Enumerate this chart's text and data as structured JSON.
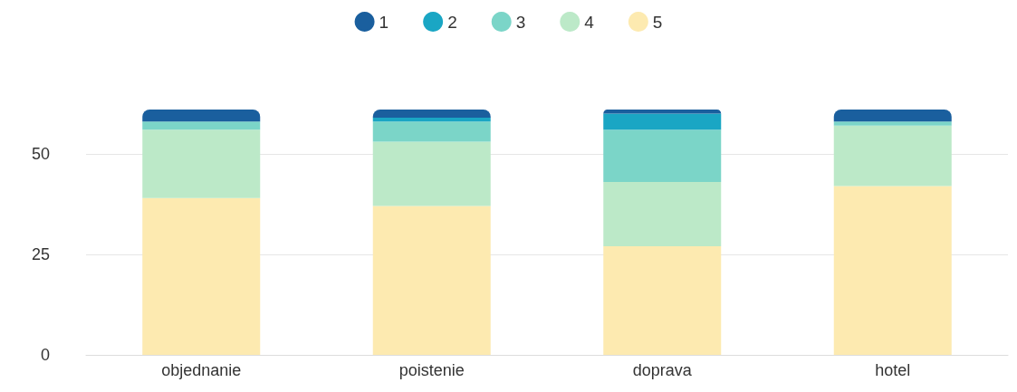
{
  "chart_data": {
    "type": "bar",
    "stacked": true,
    "categories": [
      "objednanie",
      "poistenie",
      "doprava",
      "hotel"
    ],
    "series": [
      {
        "name": "5",
        "color": "#fdeab0",
        "values": [
          39,
          37,
          27,
          42
        ]
      },
      {
        "name": "4",
        "color": "#bce9c8",
        "values": [
          17,
          16,
          16,
          15
        ]
      },
      {
        "name": "3",
        "color": "#7bd5c8",
        "values": [
          2,
          5,
          13,
          1
        ]
      },
      {
        "name": "2",
        "color": "#1aa6c4",
        "values": [
          0,
          1,
          4,
          0
        ]
      },
      {
        "name": "1",
        "color": "#1a5f9e",
        "values": [
          3,
          2,
          1,
          3
        ]
      }
    ],
    "ylim": [
      0,
      61
    ],
    "yticks": [
      0,
      25,
      50
    ],
    "grid": "y",
    "legend": "top"
  }
}
